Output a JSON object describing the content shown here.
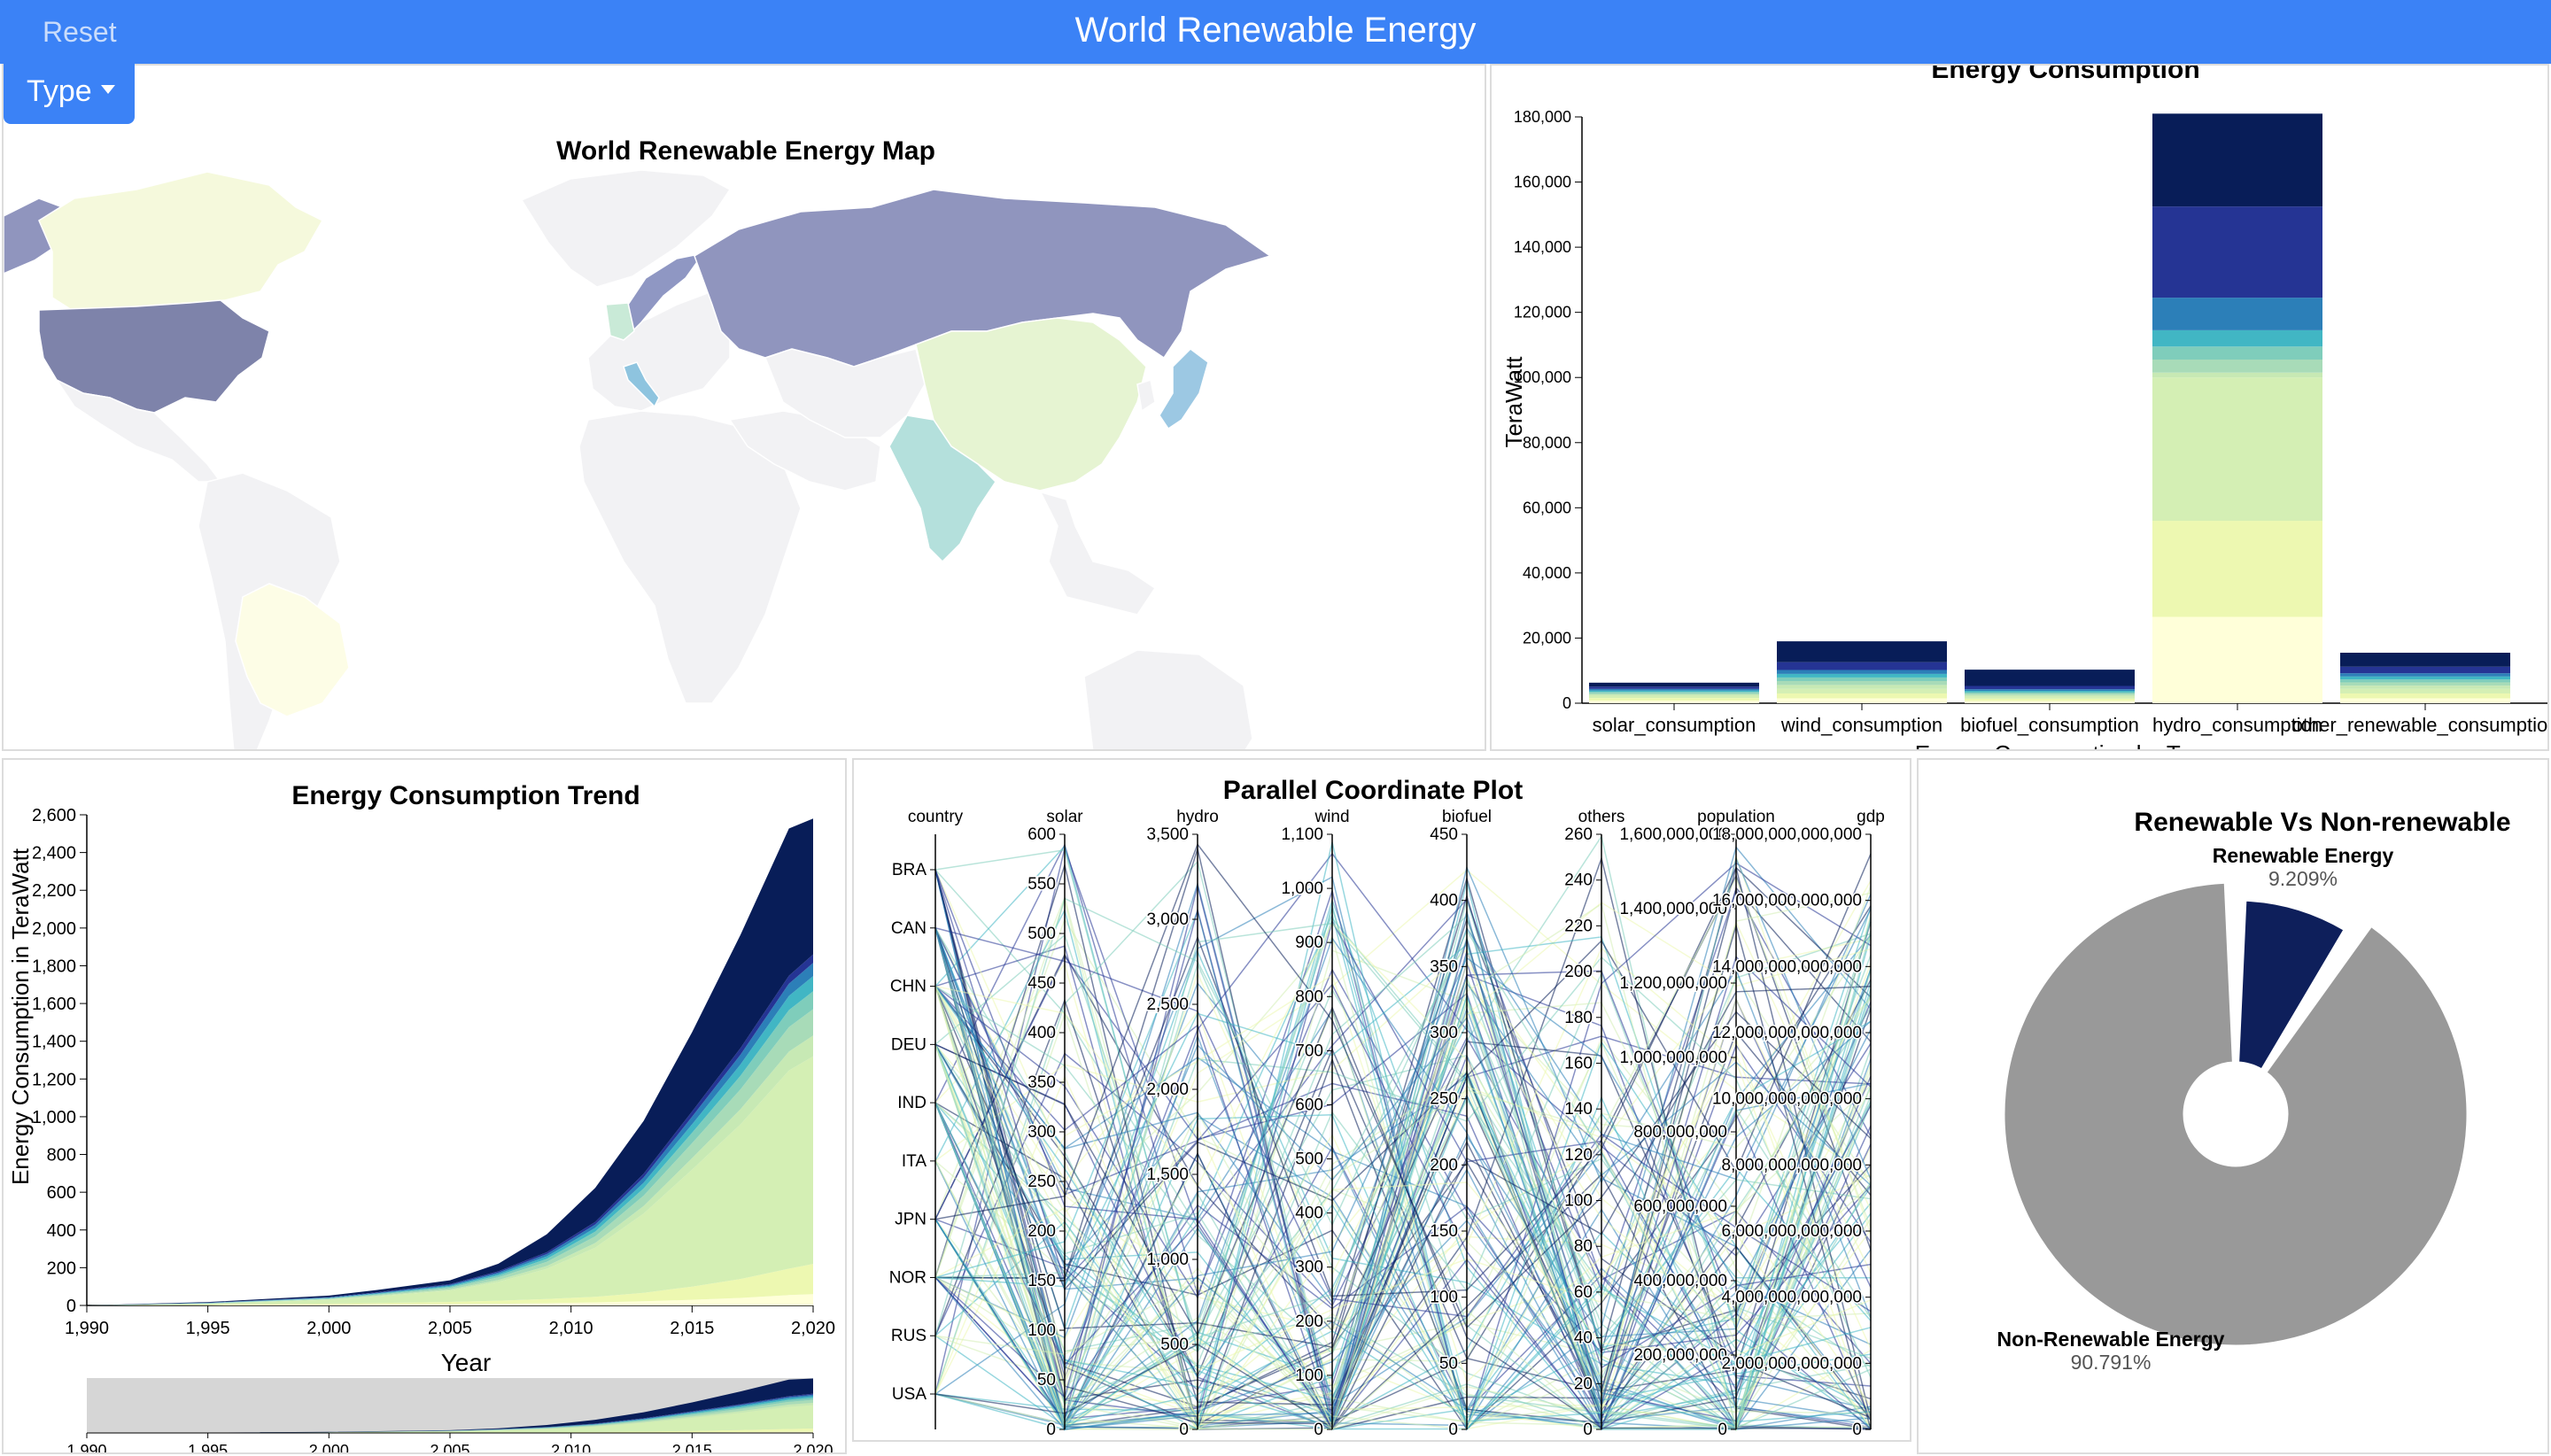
{
  "header": {
    "title": "World Renewable Energy",
    "reset_label": "Reset",
    "type_label": "Type"
  },
  "colors": {
    "header_bg": "#3b82f6",
    "ylgnbu": [
      "#ffffd9",
      "#edf8b1",
      "#d4efb4",
      "#c7e9b4",
      "#a8dbb8",
      "#7fcdbb",
      "#41b6c4",
      "#2c7fb8",
      "#253494",
      "#081d58"
    ],
    "nonrenewable": "#999999",
    "renewable": "#0e1f5b"
  },
  "map": {
    "title": "World Renewable Energy Map"
  },
  "bar_chart": {
    "title": "Energy Consumption",
    "ylabel": "TeraWatt",
    "xlabel": "Energy Consumption by Type",
    "ticks": [
      "0",
      "20,000",
      "40,000",
      "60,000",
      "80,000",
      "100,000",
      "120,000",
      "140,000",
      "160,000",
      "180,000"
    ]
  },
  "trend_chart": {
    "title": "Energy Consumption Trend",
    "ylabel": "Energy Consumption in TeraWatt",
    "xlabel": "Year",
    "y_ticks": [
      "0",
      "200",
      "400",
      "600",
      "800",
      "1,000",
      "1,200",
      "1,400",
      "1,600",
      "1,800",
      "2,000",
      "2,200",
      "2,400",
      "2,600"
    ],
    "x_ticks": [
      "1,990",
      "1,995",
      "2,000",
      "2,005",
      "2,010",
      "2,015",
      "2,020"
    ]
  },
  "parallel": {
    "title": "Parallel Coordinate Plot",
    "axes": [
      "country",
      "solar",
      "hydro",
      "wind",
      "biofuel",
      "others",
      "population",
      "gdp"
    ],
    "countries": [
      "BRA",
      "CAN",
      "CHN",
      "DEU",
      "IND",
      "ITA",
      "JPN",
      "NOR",
      "RUS",
      "USA"
    ],
    "solar_ticks": [
      "0",
      "50",
      "100",
      "150",
      "200",
      "250",
      "300",
      "350",
      "400",
      "450",
      "500",
      "550",
      "600"
    ],
    "hydro_ticks": [
      "0",
      "500",
      "1,000",
      "1,500",
      "2,000",
      "2,500",
      "3,000",
      "3,500"
    ],
    "wind_ticks": [
      "0",
      "100",
      "200",
      "300",
      "400",
      "500",
      "600",
      "700",
      "800",
      "900",
      "1,000",
      "1,100"
    ],
    "biofuel_ticks": [
      "0",
      "50",
      "100",
      "150",
      "200",
      "250",
      "300",
      "350",
      "400",
      "450"
    ],
    "others_ticks": [
      "0",
      "20",
      "40",
      "60",
      "80",
      "100",
      "120",
      "140",
      "160",
      "180",
      "200",
      "220",
      "240",
      "260"
    ],
    "population_ticks": [
      "0",
      "200,000,000",
      "400,000,000",
      "600,000,000",
      "800,000,000",
      "1,000,000,000",
      "1,200,000,000",
      "1,400,000,000",
      "1,600,000,000"
    ],
    "gdp_ticks": [
      "0",
      "2,000,000,000,000",
      "4,000,000,000,000",
      "6,000,000,000,000",
      "8,000,000,000,000",
      "10,000,000,000,000",
      "12,000,000,000,000",
      "14,000,000,000,000",
      "16,000,000,000,000",
      "18,000,000,000,000"
    ]
  },
  "pie": {
    "title": "Renewable Vs Non-renewable",
    "renewable_label": "Renewable Energy",
    "renewable_pct": "9.209%",
    "nonrenewable_label": "Non-Renewable Energy",
    "nonrenewable_pct": "90.791%"
  },
  "chart_data": [
    {
      "type": "bar",
      "title": "Energy Consumption",
      "xlabel": "Energy Consumption by Type",
      "ylabel": "TeraWatt",
      "ylim": [
        0,
        180000
      ],
      "categories": [
        "solar_consumption",
        "wind_consumption",
        "biofuel_consumption",
        "hydro_consumption",
        "other_renewable_consumption"
      ],
      "stacked": true,
      "series": [
        {
          "values": [
            800,
            1500,
            700,
            26500,
            1500
          ]
        },
        {
          "values": [
            800,
            1500,
            700,
            29500,
            1500
          ]
        },
        {
          "values": [
            700,
            1400,
            600,
            44000,
            1400
          ]
        },
        {
          "values": [
            400,
            1200,
            500,
            1500,
            1000
          ]
        },
        {
          "values": [
            400,
            1200,
            500,
            4000,
            1000
          ]
        },
        {
          "values": [
            400,
            1100,
            400,
            4000,
            900
          ]
        },
        {
          "values": [
            400,
            1100,
            400,
            5000,
            900
          ]
        },
        {
          "values": [
            500,
            1200,
            500,
            10000,
            1000
          ]
        },
        {
          "values": [
            700,
            2400,
            1000,
            28000,
            2000
          ]
        },
        {
          "values": [
            1200,
            6400,
            5000,
            28500,
            4300
          ]
        }
      ]
    },
    {
      "type": "area",
      "title": "Energy Consumption Trend",
      "xlabel": "Year",
      "ylabel": "Energy Consumption in TeraWatt",
      "ylim": [
        0,
        2600
      ],
      "xlim": [
        1990,
        2020
      ],
      "x": [
        1990,
        1995,
        2000,
        2002,
        2005,
        2007,
        2009,
        2011,
        2013,
        2015,
        2017,
        2019,
        2020
      ],
      "series": [
        {
          "values": [
            0,
            2,
            4,
            5,
            7,
            9,
            12,
            16,
            22,
            30,
            40,
            55,
            60
          ]
        },
        {
          "values": [
            0,
            2,
            6,
            8,
            12,
            16,
            22,
            30,
            45,
            70,
            100,
            140,
            160
          ]
        },
        {
          "values": [
            0,
            5,
            20,
            35,
            60,
            100,
            160,
            260,
            420,
            620,
            820,
            1050,
            1100
          ]
        },
        {
          "values": [
            0,
            1,
            3,
            4,
            6,
            10,
            15,
            25,
            40,
            60,
            80,
            100,
            110
          ]
        },
        {
          "values": [
            0,
            1,
            3,
            5,
            8,
            14,
            22,
            35,
            55,
            80,
            105,
            130,
            140
          ]
        },
        {
          "values": [
            0,
            1,
            2,
            4,
            6,
            10,
            16,
            25,
            38,
            55,
            72,
            90,
            95
          ]
        },
        {
          "values": [
            0,
            1,
            2,
            3,
            5,
            8,
            13,
            20,
            30,
            45,
            60,
            75,
            80
          ]
        },
        {
          "values": [
            0,
            1,
            2,
            3,
            5,
            8,
            12,
            18,
            28,
            40,
            52,
            65,
            70
          ]
        },
        {
          "values": [
            0,
            1,
            2,
            3,
            4,
            6,
            10,
            14,
            20,
            28,
            35,
            42,
            45
          ]
        },
        {
          "values": [
            0,
            3,
            8,
            12,
            20,
            40,
            95,
            180,
            280,
            420,
            600,
            780,
            720
          ]
        }
      ]
    },
    {
      "type": "pie",
      "title": "Renewable Vs Non-renewable",
      "categories": [
        "Renewable Energy",
        "Non-Renewable Energy"
      ],
      "values": [
        9.209,
        90.791
      ]
    }
  ]
}
